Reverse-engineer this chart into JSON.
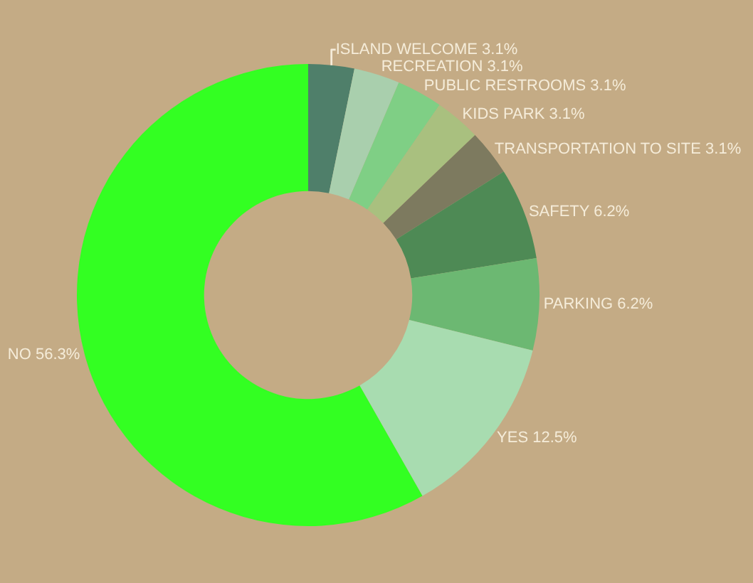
{
  "chart_data": {
    "type": "donut",
    "categories": [
      "ISLAND WELCOME",
      "RECREATION",
      "PUBLIC RESTROOMS",
      "KIDS PARK",
      "TRANSPORTATION TO SITE",
      "SAFETY",
      "PARKING",
      "YES",
      "NO"
    ],
    "values": [
      3.1,
      3.1,
      3.1,
      3.1,
      3.1,
      6.2,
      6.2,
      12.5,
      56.3
    ],
    "value_labels": [
      "3.1%",
      "3.1%",
      "3.1%",
      "3.1%",
      "3.1%",
      "6.2%",
      "6.2%",
      "12.5%",
      "56.3%"
    ],
    "colors": [
      "#4f7f6a",
      "#a9cfad",
      "#7fcf85",
      "#a9c07f",
      "#7d7a5f",
      "#4e8a55",
      "#6cb872",
      "#a8dcb0",
      "#33ff22"
    ],
    "legend": false
  }
}
